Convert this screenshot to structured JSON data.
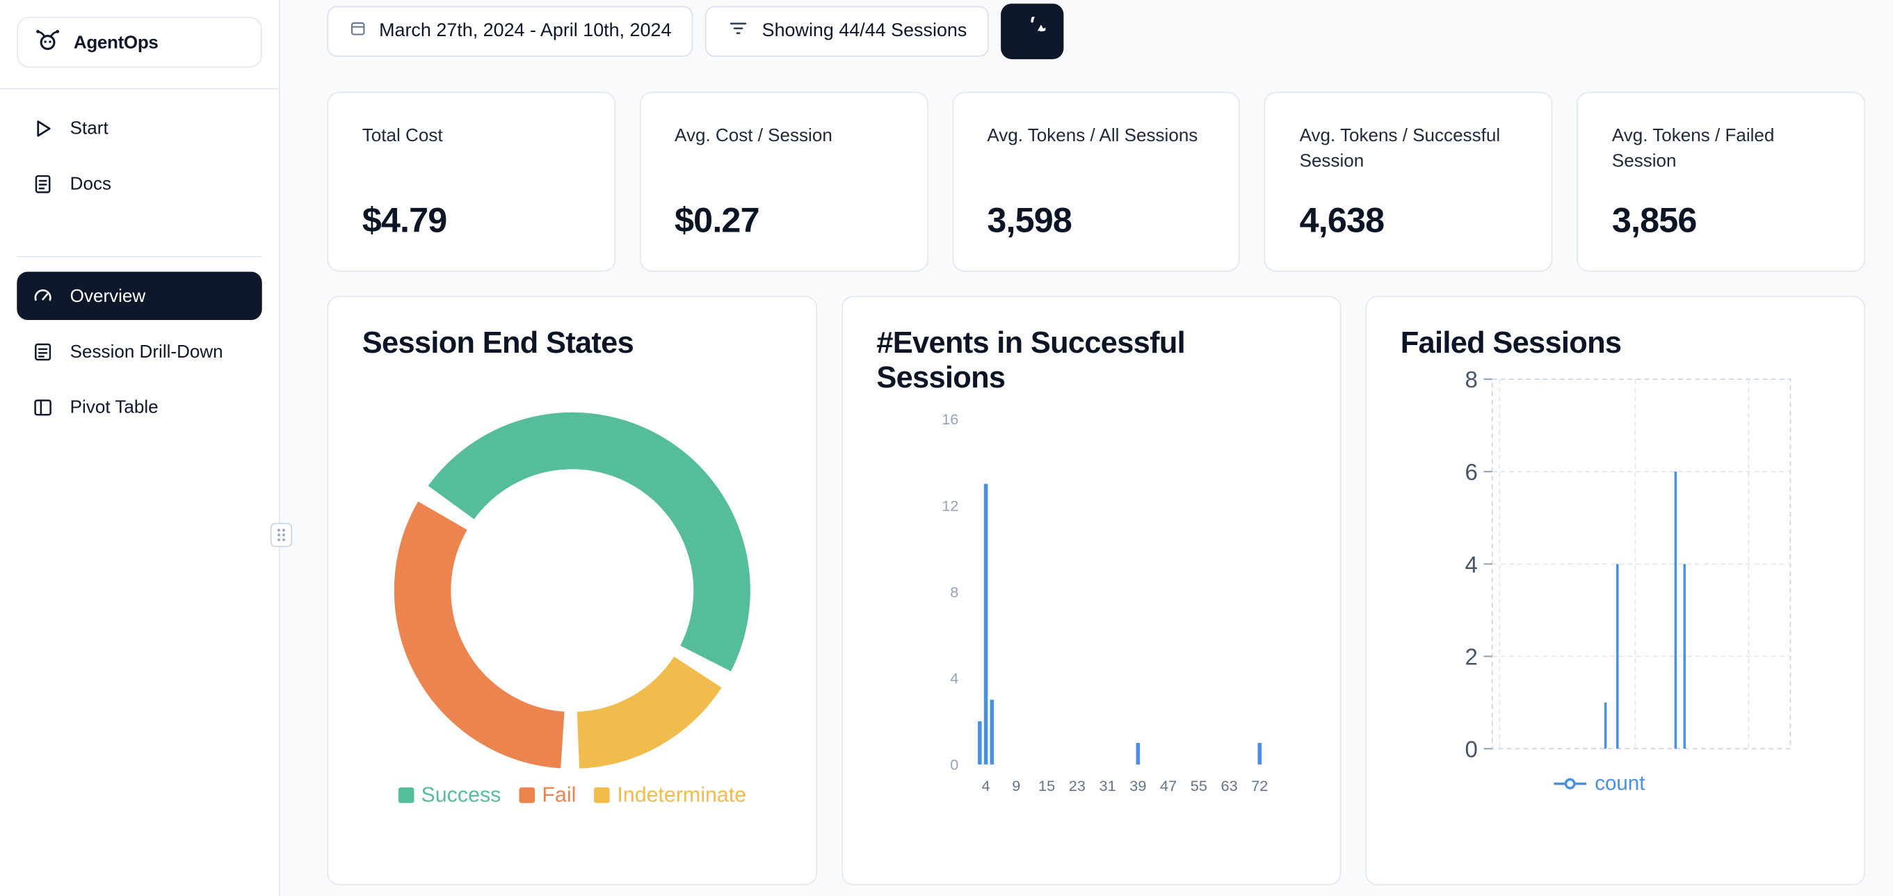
{
  "app": {
    "name": "AgentOps"
  },
  "sidebar": {
    "items": [
      {
        "label": "Start",
        "icon": "play-icon"
      },
      {
        "label": "Docs",
        "icon": "docs-icon"
      },
      {
        "label": "Overview",
        "icon": "gauge-icon",
        "active": true
      },
      {
        "label": "Session Drill-Down",
        "icon": "journal-icon"
      },
      {
        "label": "Pivot Table",
        "icon": "pivot-icon"
      }
    ]
  },
  "topbar": {
    "date_range": "March 27th, 2024 - April 10th, 2024",
    "filter_label": "Showing 44/44 Sessions",
    "refresh_icon": "refresh-icon"
  },
  "stats": [
    {
      "label": "Total Cost",
      "value": "$4.79"
    },
    {
      "label": "Avg. Cost / Session",
      "value": "$0.27"
    },
    {
      "label": "Avg. Tokens / All Sessions",
      "value": "3,598"
    },
    {
      "label": "Avg. Tokens / Successful Session",
      "value": "4,638"
    },
    {
      "label": "Avg. Tokens / Failed Session",
      "value": "3,856"
    }
  ],
  "colors": {
    "accent_dark": "#0f172a",
    "success": "#56bd9b",
    "fail": "#ec8450",
    "indeterminate": "#f0bc4b",
    "chart_blue": "#4a90e2",
    "border": "#e2e8f0",
    "page_bg": "#f8fafc"
  },
  "chart_data": [
    {
      "type": "pie",
      "variant": "donut",
      "title": "Session End States",
      "labels": [
        "Success",
        "Fail",
        "Indeterminate"
      ],
      "values_percent": [
        50,
        34,
        16
      ],
      "colors": [
        "#56bd9b",
        "#ec8450",
        "#f0bc4b"
      ],
      "draw_order": [
        0,
        2,
        1
      ],
      "start_angle_deg": -57,
      "pad_angle_deg": 6,
      "legend_position": "bottom"
    },
    {
      "type": "bar",
      "title": "#Events in Successful Sessions",
      "xlabel": "",
      "ylabel": "",
      "x_ticks": [
        "4",
        "9",
        "15",
        "23",
        "31",
        "39",
        "47",
        "55",
        "63",
        "72"
      ],
      "y_ticks": [
        0,
        4,
        8,
        12,
        16
      ],
      "ylim": [
        0,
        16
      ],
      "points": [
        {
          "x": 3,
          "count": 2
        },
        {
          "x": 4,
          "count": 13
        },
        {
          "x": 5,
          "count": 3
        },
        {
          "x": 39,
          "count": 1
        },
        {
          "x": 72,
          "count": 1
        }
      ],
      "bar_color": "#4a90e2"
    },
    {
      "type": "line",
      "title": "Failed Sessions",
      "y_ticks": [
        0,
        2,
        4,
        6,
        8
      ],
      "ylim": [
        0,
        8
      ],
      "grid": "dashed",
      "legend": [
        {
          "label": "count",
          "color": "#4a90e2"
        }
      ],
      "series": [
        {
          "name": "count",
          "color": "#4a90e2",
          "spikes": [
            {
              "x_frac": 0.38,
              "y": 1
            },
            {
              "x_frac": 0.42,
              "y": 4
            },
            {
              "x_frac": 0.615,
              "y": 6
            },
            {
              "x_frac": 0.645,
              "y": 4
            }
          ]
        }
      ]
    }
  ]
}
